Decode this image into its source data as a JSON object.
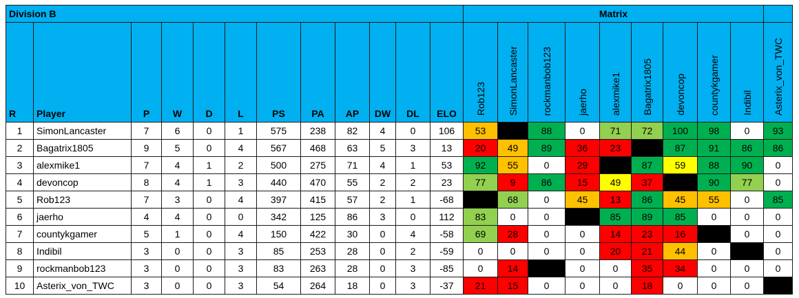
{
  "title_left": "Division B",
  "title_right": "Matrix",
  "headers": [
    "R",
    "Player",
    "P",
    "W",
    "D",
    "L",
    "PS",
    "PA",
    "AP",
    "DW",
    "DL",
    "ELO"
  ],
  "matrix_headers": [
    "Rob123",
    "SimonLancaster",
    "rockmanbob123",
    "jaerho",
    "alexmike1",
    "Bagatrix1805",
    "devoncop",
    "countykgamer",
    "Indibil",
    "Asterix_von_TWC"
  ],
  "colors": {
    "header": "#00b0f0",
    "dark_green": "#00b050",
    "light_green": "#92d050",
    "yellow": "#ffff00",
    "orange": "#ffc000",
    "red": "#ff0000",
    "black": "#000000",
    "white": "#ffffff"
  },
  "rows": [
    {
      "r": "1",
      "player": "SimonLancaster",
      "p": "7",
      "w": "6",
      "d": "0",
      "l": "1",
      "ps": "575",
      "pa": "238",
      "ap": "82",
      "dw": "4",
      "dl": "0",
      "elo": "106",
      "matrix": [
        {
          "v": "53",
          "c": "orange"
        },
        {
          "v": "",
          "c": "black"
        },
        {
          "v": "88",
          "c": "dark_green"
        },
        {
          "v": "0",
          "c": "white"
        },
        {
          "v": "71",
          "c": "light_green"
        },
        {
          "v": "72",
          "c": "light_green"
        },
        {
          "v": "100",
          "c": "dark_green"
        },
        {
          "v": "98",
          "c": "dark_green"
        },
        {
          "v": "0",
          "c": "white"
        },
        {
          "v": "93",
          "c": "dark_green"
        }
      ]
    },
    {
      "r": "2",
      "player": "Bagatrix1805",
      "p": "9",
      "w": "5",
      "d": "0",
      "l": "4",
      "ps": "567",
      "pa": "468",
      "ap": "63",
      "dw": "5",
      "dl": "3",
      "elo": "13",
      "matrix": [
        {
          "v": "20",
          "c": "red"
        },
        {
          "v": "49",
          "c": "orange"
        },
        {
          "v": "89",
          "c": "dark_green"
        },
        {
          "v": "36",
          "c": "red"
        },
        {
          "v": "23",
          "c": "red"
        },
        {
          "v": "",
          "c": "black"
        },
        {
          "v": "87",
          "c": "dark_green"
        },
        {
          "v": "91",
          "c": "dark_green"
        },
        {
          "v": "86",
          "c": "dark_green"
        },
        {
          "v": "86",
          "c": "dark_green"
        }
      ]
    },
    {
      "r": "3",
      "player": "alexmike1",
      "p": "7",
      "w": "4",
      "d": "1",
      "l": "2",
      "ps": "500",
      "pa": "275",
      "ap": "71",
      "dw": "4",
      "dl": "1",
      "elo": "53",
      "matrix": [
        {
          "v": "92",
          "c": "dark_green"
        },
        {
          "v": "55",
          "c": "orange"
        },
        {
          "v": "0",
          "c": "white"
        },
        {
          "v": "29",
          "c": "red"
        },
        {
          "v": "",
          "c": "black"
        },
        {
          "v": "87",
          "c": "dark_green"
        },
        {
          "v": "59",
          "c": "yellow"
        },
        {
          "v": "88",
          "c": "dark_green"
        },
        {
          "v": "90",
          "c": "dark_green"
        },
        {
          "v": "0",
          "c": "white"
        }
      ]
    },
    {
      "r": "4",
      "player": "devoncop",
      "p": "8",
      "w": "4",
      "d": "1",
      "l": "3",
      "ps": "440",
      "pa": "470",
      "ap": "55",
      "dw": "2",
      "dl": "2",
      "elo": "23",
      "matrix": [
        {
          "v": "77",
          "c": "light_green"
        },
        {
          "v": "9",
          "c": "red"
        },
        {
          "v": "86",
          "c": "dark_green"
        },
        {
          "v": "15",
          "c": "red"
        },
        {
          "v": "49",
          "c": "yellow"
        },
        {
          "v": "37",
          "c": "red"
        },
        {
          "v": "",
          "c": "black"
        },
        {
          "v": "90",
          "c": "dark_green"
        },
        {
          "v": "77",
          "c": "light_green"
        },
        {
          "v": "0",
          "c": "white"
        }
      ]
    },
    {
      "r": "5",
      "player": "Rob123",
      "p": "7",
      "w": "3",
      "d": "0",
      "l": "4",
      "ps": "397",
      "pa": "415",
      "ap": "57",
      "dw": "2",
      "dl": "1",
      "elo": "-68",
      "matrix": [
        {
          "v": "",
          "c": "black"
        },
        {
          "v": "68",
          "c": "light_green"
        },
        {
          "v": "0",
          "c": "white"
        },
        {
          "v": "45",
          "c": "orange"
        },
        {
          "v": "13",
          "c": "red"
        },
        {
          "v": "86",
          "c": "dark_green"
        },
        {
          "v": "45",
          "c": "orange"
        },
        {
          "v": "55",
          "c": "orange"
        },
        {
          "v": "0",
          "c": "white"
        },
        {
          "v": "85",
          "c": "dark_green"
        }
      ]
    },
    {
      "r": "6",
      "player": "jaerho",
      "p": "4",
      "w": "4",
      "d": "0",
      "l": "0",
      "ps": "342",
      "pa": "125",
      "ap": "86",
      "dw": "3",
      "dl": "0",
      "elo": "112",
      "matrix": [
        {
          "v": "83",
          "c": "light_green"
        },
        {
          "v": "0",
          "c": "white"
        },
        {
          "v": "0",
          "c": "white"
        },
        {
          "v": "",
          "c": "black"
        },
        {
          "v": "85",
          "c": "dark_green"
        },
        {
          "v": "89",
          "c": "dark_green"
        },
        {
          "v": "85",
          "c": "dark_green"
        },
        {
          "v": "0",
          "c": "white"
        },
        {
          "v": "0",
          "c": "white"
        },
        {
          "v": "0",
          "c": "white"
        }
      ]
    },
    {
      "r": "7",
      "player": "countykgamer",
      "p": "5",
      "w": "1",
      "d": "0",
      "l": "4",
      "ps": "150",
      "pa": "422",
      "ap": "30",
      "dw": "0",
      "dl": "4",
      "elo": "-58",
      "matrix": [
        {
          "v": "69",
          "c": "light_green"
        },
        {
          "v": "28",
          "c": "red"
        },
        {
          "v": "0",
          "c": "white"
        },
        {
          "v": "0",
          "c": "white"
        },
        {
          "v": "14",
          "c": "red"
        },
        {
          "v": "23",
          "c": "red"
        },
        {
          "v": "16",
          "c": "red"
        },
        {
          "v": "",
          "c": "black"
        },
        {
          "v": "0",
          "c": "white"
        },
        {
          "v": "0",
          "c": "white"
        }
      ]
    },
    {
      "r": "8",
      "player": "Indibil",
      "p": "3",
      "w": "0",
      "d": "0",
      "l": "3",
      "ps": "85",
      "pa": "253",
      "ap": "28",
      "dw": "0",
      "dl": "2",
      "elo": "-59",
      "matrix": [
        {
          "v": "0",
          "c": "white"
        },
        {
          "v": "0",
          "c": "white"
        },
        {
          "v": "0",
          "c": "white"
        },
        {
          "v": "0",
          "c": "white"
        },
        {
          "v": "20",
          "c": "red"
        },
        {
          "v": "21",
          "c": "red"
        },
        {
          "v": "44",
          "c": "orange"
        },
        {
          "v": "0",
          "c": "white"
        },
        {
          "v": "",
          "c": "black"
        },
        {
          "v": "0",
          "c": "white"
        }
      ]
    },
    {
      "r": "9",
      "player": "rockmanbob123",
      "p": "3",
      "w": "0",
      "d": "0",
      "l": "3",
      "ps": "83",
      "pa": "263",
      "ap": "28",
      "dw": "0",
      "dl": "3",
      "elo": "-85",
      "matrix": [
        {
          "v": "0",
          "c": "white"
        },
        {
          "v": "14",
          "c": "red"
        },
        {
          "v": "",
          "c": "black"
        },
        {
          "v": "0",
          "c": "white"
        },
        {
          "v": "0",
          "c": "white"
        },
        {
          "v": "35",
          "c": "red"
        },
        {
          "v": "34",
          "c": "red"
        },
        {
          "v": "0",
          "c": "white"
        },
        {
          "v": "0",
          "c": "white"
        },
        {
          "v": "0",
          "c": "white"
        }
      ]
    },
    {
      "r": "10",
      "player": "Asterix_von_TWC",
      "p": "3",
      "w": "0",
      "d": "0",
      "l": "3",
      "ps": "54",
      "pa": "264",
      "ap": "18",
      "dw": "0",
      "dl": "3",
      "elo": "-37",
      "matrix": [
        {
          "v": "21",
          "c": "red"
        },
        {
          "v": "15",
          "c": "red"
        },
        {
          "v": "0",
          "c": "white"
        },
        {
          "v": "0",
          "c": "white"
        },
        {
          "v": "0",
          "c": "white"
        },
        {
          "v": "18",
          "c": "red"
        },
        {
          "v": "0",
          "c": "white"
        },
        {
          "v": "0",
          "c": "white"
        },
        {
          "v": "0",
          "c": "white"
        },
        {
          "v": "",
          "c": "black"
        }
      ]
    }
  ]
}
